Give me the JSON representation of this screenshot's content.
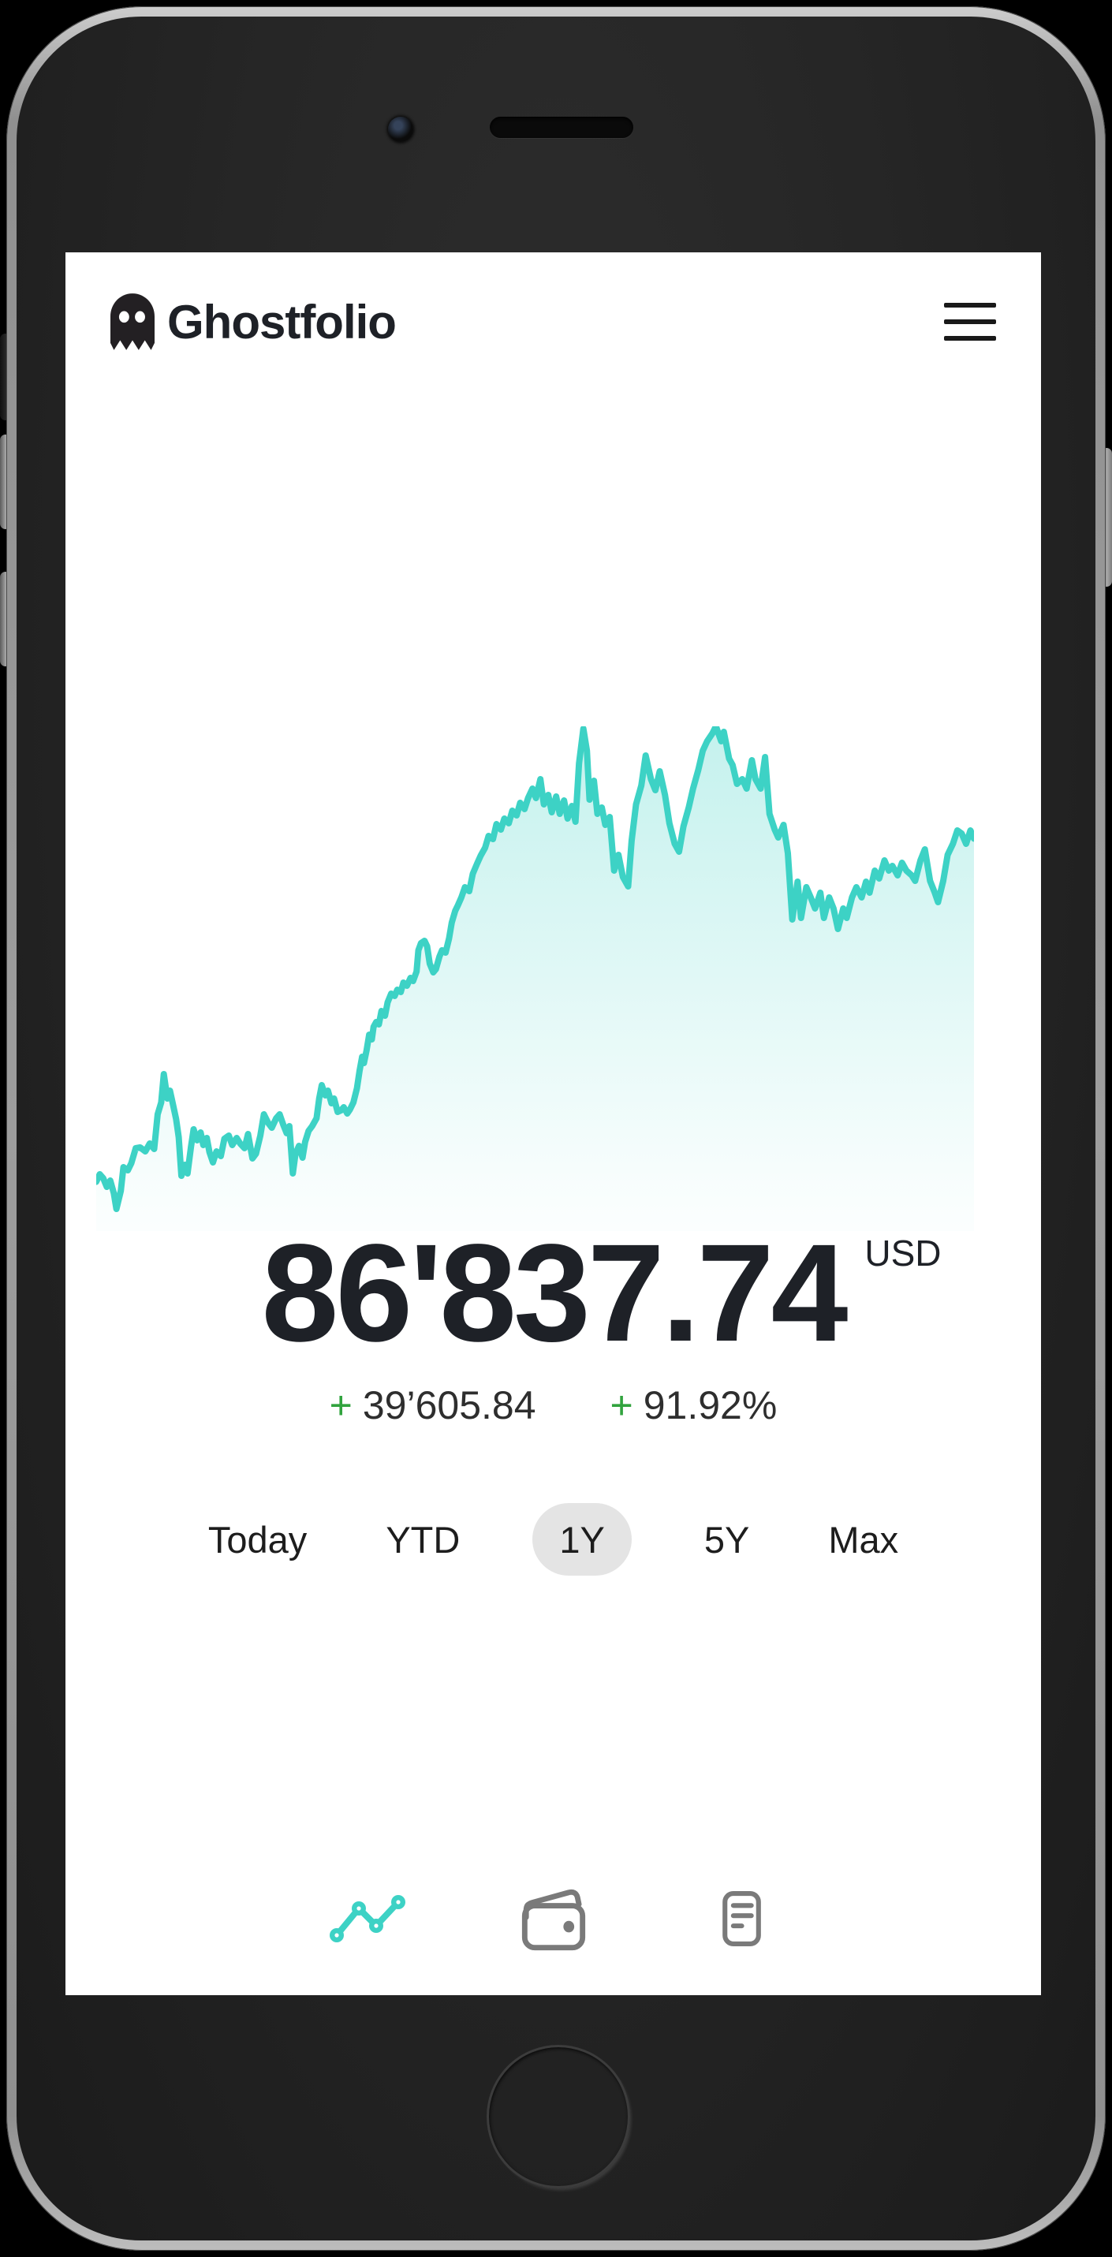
{
  "app": {
    "title": "Ghostfolio"
  },
  "colors": {
    "accent_teal": "#3dd2c5",
    "positive_green": "#31a33e",
    "text_dark": "#1e2127",
    "range_pill_bg": "#e4e4e4",
    "nav_inactive": "#7a7a7a"
  },
  "value": {
    "amount": "86'837.74",
    "currency": "USD"
  },
  "change": {
    "abs_sign": "+",
    "abs": "39’605.84",
    "pct_sign": "+",
    "pct": "91.92%"
  },
  "ranges": {
    "active_index": 2,
    "items": [
      {
        "label": "Today"
      },
      {
        "label": "YTD"
      },
      {
        "label": "1Y"
      },
      {
        "label": "5Y"
      },
      {
        "label": "Max"
      }
    ]
  },
  "nav": {
    "active_index": 0,
    "items": [
      {
        "icon": "line-chart-icon",
        "active": true
      },
      {
        "icon": "wallet-icon",
        "active": false
      },
      {
        "icon": "report-icon",
        "active": false
      }
    ]
  },
  "chart_data": {
    "type": "area",
    "title": "",
    "xlabel": "",
    "ylabel": "",
    "axes_visible": false,
    "grid": false,
    "legend": false,
    "x_range": [
      0,
      1
    ],
    "ylim": [
      44100,
      99792
    ],
    "line_color": "#3dd2c5",
    "fill_gradient_top": "rgba(61,210,197,0.30)",
    "fill_gradient_bottom": "rgba(61,210,197,0.02)",
    "points": [
      [
        0.0,
        47232
      ],
      [
        0.004,
        48104
      ],
      [
        0.008,
        47649
      ],
      [
        0.012,
        46648
      ],
      [
        0.016,
        47376
      ],
      [
        0.02,
        45920
      ],
      [
        0.023,
        44100
      ],
      [
        0.028,
        46193
      ],
      [
        0.031,
        48923
      ],
      [
        0.036,
        48559
      ],
      [
        0.04,
        49378
      ],
      [
        0.045,
        51107
      ],
      [
        0.05,
        51198
      ],
      [
        0.056,
        50743
      ],
      [
        0.061,
        51653
      ],
      [
        0.066,
        51016
      ],
      [
        0.07,
        55020
      ],
      [
        0.074,
        56385
      ],
      [
        0.077,
        59661
      ],
      [
        0.081,
        56840
      ],
      [
        0.084,
        57750
      ],
      [
        0.087,
        56385
      ],
      [
        0.091,
        54474
      ],
      [
        0.094,
        52381
      ],
      [
        0.097,
        47922
      ],
      [
        0.101,
        49196
      ],
      [
        0.104,
        48195
      ],
      [
        0.108,
        51289
      ],
      [
        0.111,
        53291
      ],
      [
        0.115,
        52017
      ],
      [
        0.119,
        52927
      ],
      [
        0.122,
        51471
      ],
      [
        0.126,
        52290
      ],
      [
        0.129,
        50652
      ],
      [
        0.133,
        49469
      ],
      [
        0.137,
        50743
      ],
      [
        0.142,
        50197
      ],
      [
        0.146,
        52199
      ],
      [
        0.151,
        52563
      ],
      [
        0.155,
        51471
      ],
      [
        0.16,
        52290
      ],
      [
        0.164,
        51653
      ],
      [
        0.169,
        51107
      ],
      [
        0.173,
        52745
      ],
      [
        0.178,
        49924
      ],
      [
        0.182,
        50470
      ],
      [
        0.187,
        52563
      ],
      [
        0.191,
        55020
      ],
      [
        0.196,
        54019
      ],
      [
        0.2,
        53473
      ],
      [
        0.205,
        54565
      ],
      [
        0.209,
        55020
      ],
      [
        0.213,
        53837
      ],
      [
        0.217,
        52836
      ],
      [
        0.22,
        53655
      ],
      [
        0.224,
        48195
      ],
      [
        0.227,
        50470
      ],
      [
        0.231,
        51380
      ],
      [
        0.235,
        50015
      ],
      [
        0.238,
        51835
      ],
      [
        0.242,
        53109
      ],
      [
        0.246,
        53655
      ],
      [
        0.251,
        54565
      ],
      [
        0.254,
        56840
      ],
      [
        0.257,
        58387
      ],
      [
        0.261,
        57204
      ],
      [
        0.264,
        57750
      ],
      [
        0.268,
        56294
      ],
      [
        0.271,
        56840
      ],
      [
        0.275,
        55293
      ],
      [
        0.279,
        55475
      ],
      [
        0.282,
        55839
      ],
      [
        0.286,
        55111
      ],
      [
        0.289,
        55566
      ],
      [
        0.293,
        56385
      ],
      [
        0.297,
        58023
      ],
      [
        0.3,
        60025
      ],
      [
        0.303,
        61663
      ],
      [
        0.305,
        60935
      ],
      [
        0.308,
        62391
      ],
      [
        0.311,
        64211
      ],
      [
        0.314,
        63665
      ],
      [
        0.316,
        65121
      ],
      [
        0.319,
        65667
      ],
      [
        0.322,
        65394
      ],
      [
        0.325,
        66941
      ],
      [
        0.329,
        66395
      ],
      [
        0.332,
        67942
      ],
      [
        0.336,
        68943
      ],
      [
        0.34,
        68670
      ],
      [
        0.343,
        69398
      ],
      [
        0.347,
        69125
      ],
      [
        0.35,
        70217
      ],
      [
        0.354,
        69853
      ],
      [
        0.358,
        70763
      ],
      [
        0.361,
        70399
      ],
      [
        0.365,
        71491
      ],
      [
        0.367,
        73948
      ],
      [
        0.37,
        74767
      ],
      [
        0.374,
        75040
      ],
      [
        0.377,
        74403
      ],
      [
        0.38,
        72401
      ],
      [
        0.384,
        71400
      ],
      [
        0.387,
        71764
      ],
      [
        0.391,
        73220
      ],
      [
        0.394,
        73948
      ],
      [
        0.398,
        73675
      ],
      [
        0.402,
        75313
      ],
      [
        0.405,
        77133
      ],
      [
        0.409,
        78498
      ],
      [
        0.412,
        79135
      ],
      [
        0.416,
        80045
      ],
      [
        0.42,
        81228
      ],
      [
        0.425,
        80773
      ],
      [
        0.429,
        82775
      ],
      [
        0.434,
        83958
      ],
      [
        0.438,
        84868
      ],
      [
        0.443,
        85778
      ],
      [
        0.447,
        87143
      ],
      [
        0.452,
        86779
      ],
      [
        0.456,
        88508
      ],
      [
        0.461,
        87871
      ],
      [
        0.465,
        89145
      ],
      [
        0.47,
        88599
      ],
      [
        0.474,
        90055
      ],
      [
        0.479,
        89509
      ],
      [
        0.483,
        90965
      ],
      [
        0.488,
        90237
      ],
      [
        0.492,
        91511
      ],
      [
        0.497,
        92603
      ],
      [
        0.501,
        91511
      ],
      [
        0.506,
        93695
      ],
      [
        0.51,
        90783
      ],
      [
        0.515,
        91875
      ],
      [
        0.519,
        89873
      ],
      [
        0.524,
        91693
      ],
      [
        0.528,
        89691
      ],
      [
        0.533,
        91238
      ],
      [
        0.537,
        89145
      ],
      [
        0.542,
        90601
      ],
      [
        0.546,
        88781
      ],
      [
        0.55,
        95515
      ],
      [
        0.555,
        99519
      ],
      [
        0.559,
        96971
      ],
      [
        0.562,
        91329
      ],
      [
        0.567,
        93513
      ],
      [
        0.571,
        89691
      ],
      [
        0.576,
        90419
      ],
      [
        0.58,
        88417
      ],
      [
        0.585,
        89327
      ],
      [
        0.59,
        83139
      ],
      [
        0.595,
        84959
      ],
      [
        0.6,
        82411
      ],
      [
        0.606,
        81319
      ],
      [
        0.61,
        86597
      ],
      [
        0.615,
        90783
      ],
      [
        0.621,
        92967
      ],
      [
        0.626,
        96425
      ],
      [
        0.632,
        93695
      ],
      [
        0.637,
        92421
      ],
      [
        0.642,
        94605
      ],
      [
        0.648,
        91875
      ],
      [
        0.653,
        88599
      ],
      [
        0.659,
        86233
      ],
      [
        0.664,
        85323
      ],
      [
        0.669,
        88235
      ],
      [
        0.675,
        90419
      ],
      [
        0.68,
        92603
      ],
      [
        0.686,
        94787
      ],
      [
        0.691,
        96971
      ],
      [
        0.696,
        98063
      ],
      [
        0.702,
        98973
      ],
      [
        0.706,
        99792
      ],
      [
        0.712,
        98063
      ],
      [
        0.715,
        99155
      ],
      [
        0.721,
        96061
      ],
      [
        0.725,
        95333
      ],
      [
        0.73,
        93149
      ],
      [
        0.736,
        93695
      ],
      [
        0.741,
        92603
      ],
      [
        0.747,
        95879
      ],
      [
        0.751,
        93695
      ],
      [
        0.757,
        92603
      ],
      [
        0.762,
        96243
      ],
      [
        0.767,
        89691
      ],
      [
        0.773,
        87871
      ],
      [
        0.777,
        86961
      ],
      [
        0.783,
        88417
      ],
      [
        0.788,
        85141
      ],
      [
        0.793,
        77497
      ],
      [
        0.799,
        81865
      ],
      [
        0.803,
        77679
      ],
      [
        0.809,
        81228
      ],
      [
        0.814,
        80045
      ],
      [
        0.819,
        78771
      ],
      [
        0.825,
        80591
      ],
      [
        0.829,
        77679
      ],
      [
        0.835,
        80045
      ],
      [
        0.84,
        78771
      ],
      [
        0.845,
        76405
      ],
      [
        0.851,
        78771
      ],
      [
        0.855,
        77679
      ],
      [
        0.861,
        80045
      ],
      [
        0.866,
        81228
      ],
      [
        0.872,
        80045
      ],
      [
        0.877,
        81865
      ],
      [
        0.881,
        80591
      ],
      [
        0.887,
        83139
      ],
      [
        0.892,
        82229
      ],
      [
        0.898,
        84322
      ],
      [
        0.903,
        83139
      ],
      [
        0.907,
        83685
      ],
      [
        0.913,
        82593
      ],
      [
        0.918,
        84049
      ],
      [
        0.923,
        83139
      ],
      [
        0.929,
        82593
      ],
      [
        0.933,
        81956
      ],
      [
        0.939,
        84322
      ],
      [
        0.944,
        85596
      ],
      [
        0.95,
        81956
      ],
      [
        0.955,
        80682
      ],
      [
        0.959,
        79499
      ],
      [
        0.965,
        81956
      ],
      [
        0.97,
        84959
      ],
      [
        0.976,
        86233
      ],
      [
        0.981,
        87780
      ],
      [
        0.986,
        87416
      ],
      [
        0.991,
        86233
      ],
      [
        0.996,
        87780
      ],
      [
        1.0,
        86838
      ]
    ]
  }
}
